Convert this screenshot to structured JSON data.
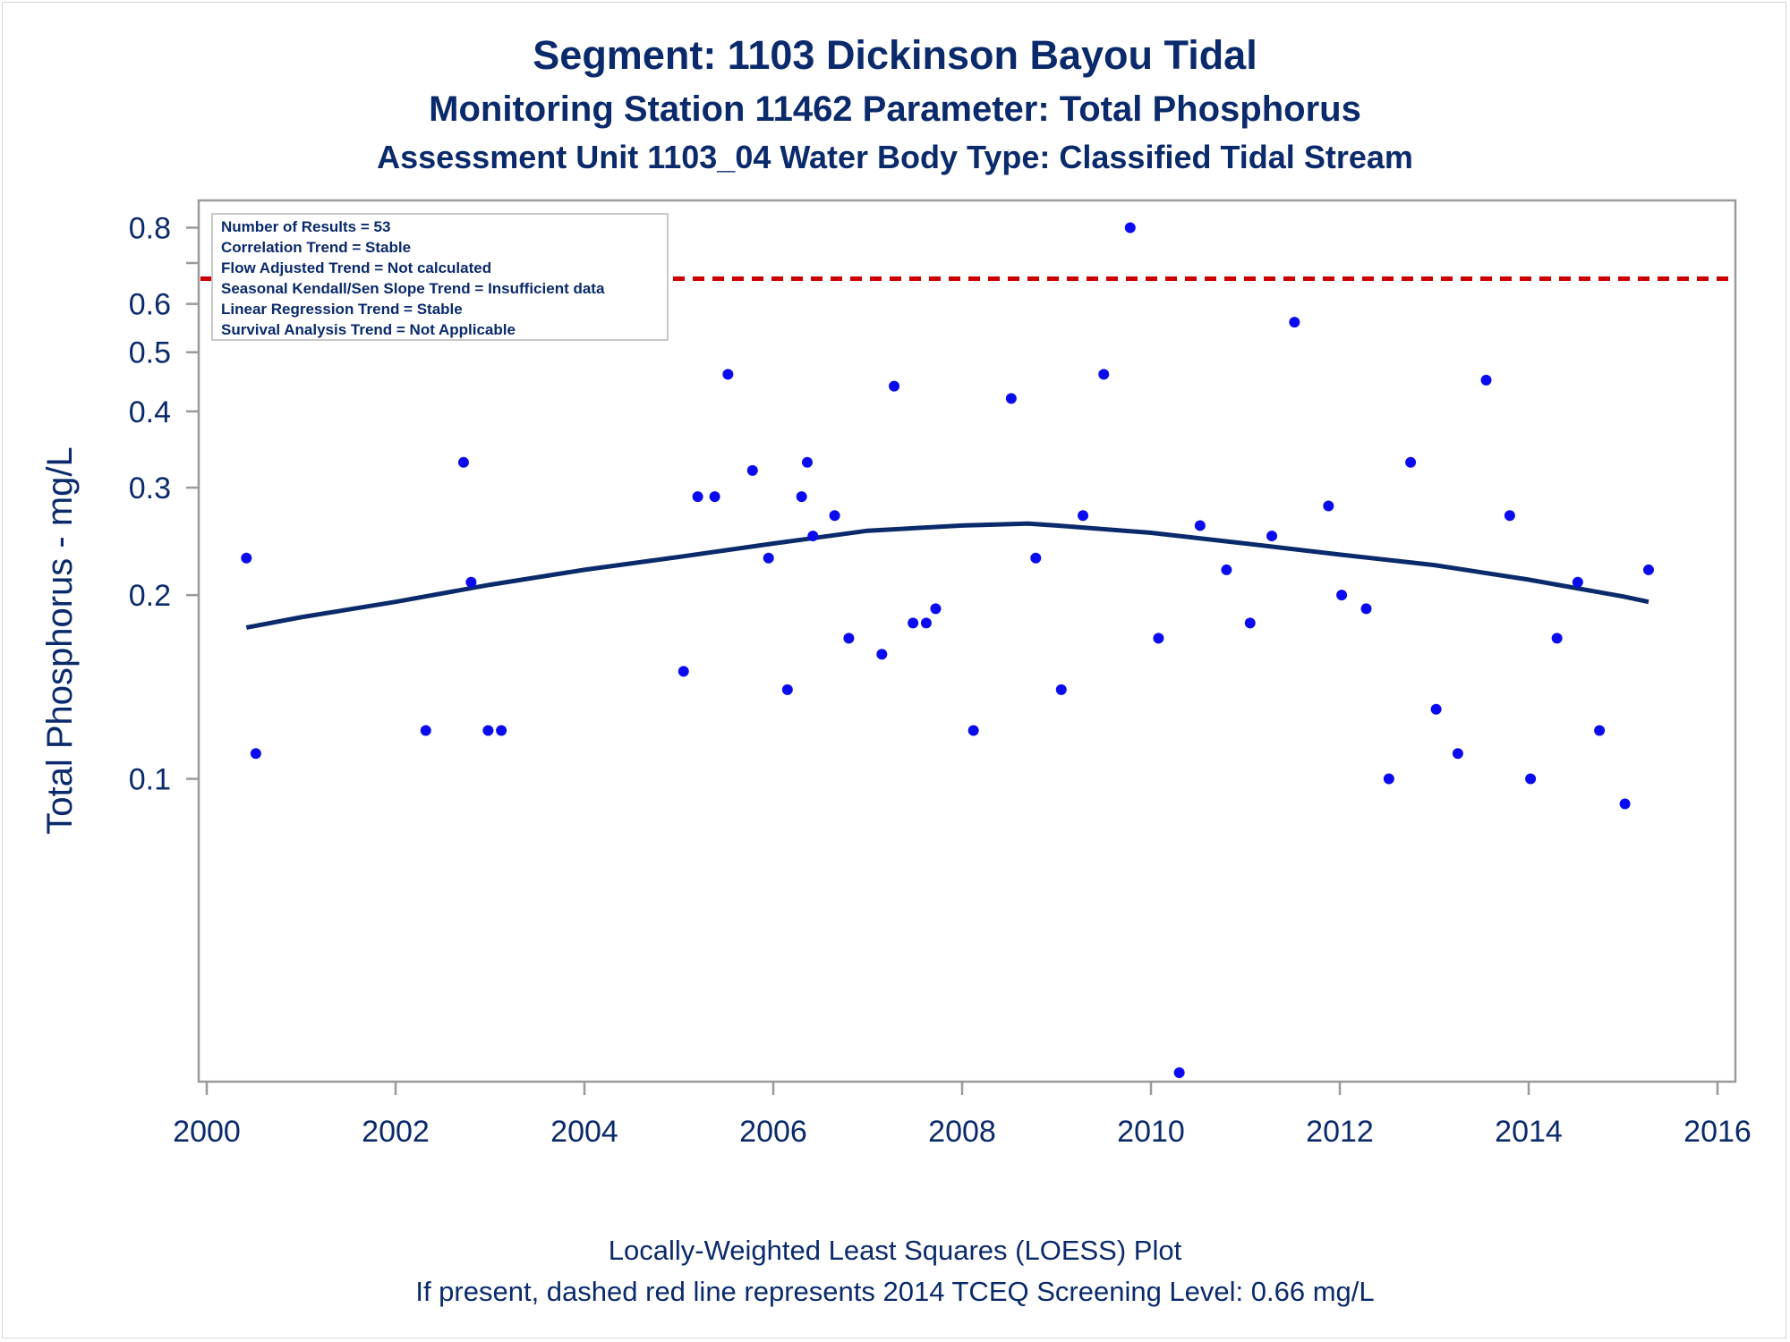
{
  "titles": {
    "line1": "Segment: 1103  Dickinson Bayou Tidal",
    "line2": "Monitoring Station 11462 Parameter: Total Phosphorus",
    "line3": "Assessment Unit 1103_04   Water Body Type: Classified Tidal Stream"
  },
  "footnotes": {
    "line1": "Locally-Weighted Least Squares (LOESS) Plot",
    "line2": "If present, dashed red line represents 2014 TCEQ Screening Level: 0.66 mg/L"
  },
  "stats_box": [
    "Number of Results = 53",
    "Correlation Trend = Stable",
    "Flow Adjusted Trend = Not calculated",
    "Seasonal Kendall/Sen Slope Trend = Insufficient data",
    "Linear Regression Trend = Stable",
    "Survival Analysis Trend = Not Applicable"
  ],
  "colors": {
    "points": "#0b0bf0",
    "loess": "#0a2a6b",
    "screening": "#cc0000",
    "text": "#0a2a6b",
    "axis": "#9a9a9a"
  },
  "chart_data": {
    "type": "scatter",
    "xlabel": "",
    "ylabel": "Total Phosphorus - mg/L",
    "xlim": [
      2000,
      2016
    ],
    "ylim": [
      0.033,
      0.84
    ],
    "yscale": "log",
    "x_ticks": [
      2000,
      2002,
      2004,
      2006,
      2008,
      2010,
      2012,
      2014,
      2016
    ],
    "y_ticks": [
      {
        "value": 0.1,
        "label": "0.1"
      },
      {
        "value": 0.2,
        "label": "0.2"
      },
      {
        "value": 0.3,
        "label": "0.3"
      },
      {
        "value": 0.4,
        "label": "0.4"
      },
      {
        "value": 0.5,
        "label": "0.5"
      },
      {
        "value": 0.6,
        "label": "0.6"
      },
      {
        "value": 0.7,
        "label": ""
      },
      {
        "value": 0.8,
        "label": "0.8"
      }
    ],
    "screening_level": 0.66,
    "points": [
      [
        2000.42,
        0.23
      ],
      [
        2000.52,
        0.11
      ],
      [
        2002.32,
        0.12
      ],
      [
        2002.72,
        0.33
      ],
      [
        2002.8,
        0.21
      ],
      [
        2002.98,
        0.12
      ],
      [
        2003.12,
        0.12
      ],
      [
        2005.05,
        0.15
      ],
      [
        2005.2,
        0.29
      ],
      [
        2005.38,
        0.29
      ],
      [
        2005.52,
        0.46
      ],
      [
        2005.78,
        0.32
      ],
      [
        2005.95,
        0.23
      ],
      [
        2006.15,
        0.14
      ],
      [
        2006.3,
        0.29
      ],
      [
        2006.36,
        0.33
      ],
      [
        2006.42,
        0.25
      ],
      [
        2006.65,
        0.27
      ],
      [
        2006.8,
        0.17
      ],
      [
        2007.15,
        0.16
      ],
      [
        2007.28,
        0.44
      ],
      [
        2007.48,
        0.18
      ],
      [
        2007.62,
        0.18
      ],
      [
        2007.72,
        0.19
      ],
      [
        2008.12,
        0.12
      ],
      [
        2008.52,
        0.42
      ],
      [
        2008.78,
        0.23
      ],
      [
        2009.05,
        0.14
      ],
      [
        2009.28,
        0.27
      ],
      [
        2009.5,
        0.46
      ],
      [
        2009.78,
        0.8
      ],
      [
        2010.08,
        0.17
      ],
      [
        2010.3,
        0.033
      ],
      [
        2010.52,
        0.26
      ],
      [
        2010.8,
        0.22
      ],
      [
        2011.05,
        0.18
      ],
      [
        2011.28,
        0.25
      ],
      [
        2011.52,
        0.56
      ],
      [
        2011.88,
        0.28
      ],
      [
        2012.02,
        0.2
      ],
      [
        2012.28,
        0.19
      ],
      [
        2012.52,
        0.1
      ],
      [
        2012.75,
        0.33
      ],
      [
        2013.02,
        0.13
      ],
      [
        2013.25,
        0.11
      ],
      [
        2013.55,
        0.45
      ],
      [
        2013.8,
        0.27
      ],
      [
        2014.02,
        0.1
      ],
      [
        2014.3,
        0.17
      ],
      [
        2014.52,
        0.21
      ],
      [
        2014.75,
        0.12
      ],
      [
        2015.02,
        0.091
      ],
      [
        2015.27,
        0.22
      ]
    ],
    "loess": [
      [
        2000.42,
        0.177
      ],
      [
        2001.0,
        0.184
      ],
      [
        2002.0,
        0.195
      ],
      [
        2003.0,
        0.208
      ],
      [
        2004.0,
        0.22
      ],
      [
        2005.0,
        0.231
      ],
      [
        2006.0,
        0.243
      ],
      [
        2007.0,
        0.255
      ],
      [
        2008.0,
        0.26
      ],
      [
        2008.7,
        0.262
      ],
      [
        2009.0,
        0.26
      ],
      [
        2010.0,
        0.253
      ],
      [
        2011.0,
        0.243
      ],
      [
        2012.0,
        0.233
      ],
      [
        2013.0,
        0.224
      ],
      [
        2014.0,
        0.212
      ],
      [
        2015.0,
        0.199
      ],
      [
        2015.27,
        0.195
      ]
    ]
  }
}
